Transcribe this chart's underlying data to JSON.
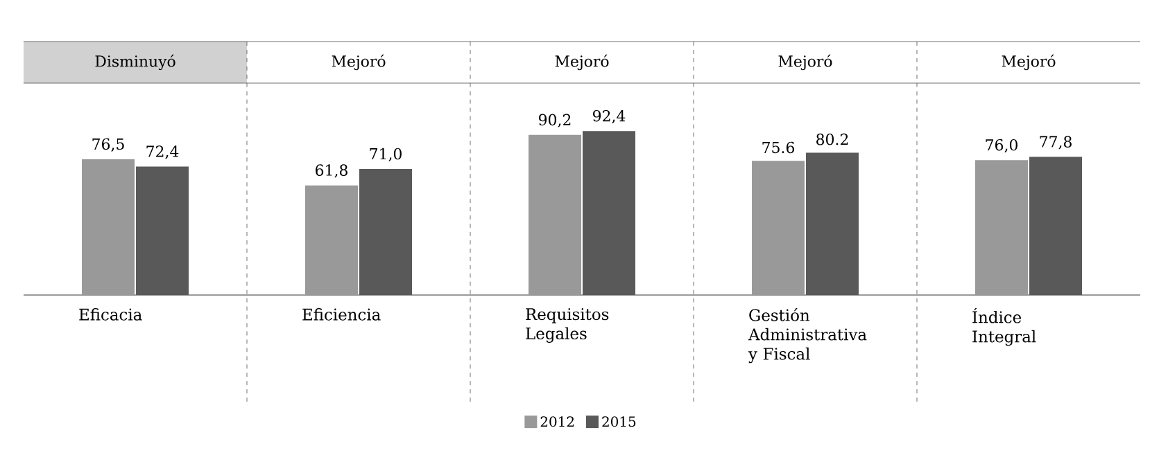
{
  "chart_data": {
    "type": "bar",
    "categories": [
      "Eficacia",
      "Eficiencia",
      "Requisitos Legales",
      "Gestión Administrativa y Fiscal",
      "Índice Integral"
    ],
    "series": [
      {
        "name": "2012",
        "color": "#999999",
        "values": [
          76.5,
          61.8,
          90.2,
          75.6,
          76.0
        ],
        "value_labels": [
          "76,5",
          "61,8",
          "90,2",
          "75.6",
          "76,0"
        ]
      },
      {
        "name": "2015",
        "color": "#595959",
        "values": [
          72.4,
          71.0,
          92.4,
          80.2,
          77.8
        ],
        "value_labels": [
          "72,4",
          "71,0",
          "92,4",
          "80.2",
          "77,8"
        ]
      }
    ],
    "annotations": [
      "Disminuyó",
      "Mejoró",
      "Mejoró",
      "Mejoró",
      "Mejoró"
    ],
    "tick_labels": "x",
    "legend": "bottom",
    "grid": false
  }
}
